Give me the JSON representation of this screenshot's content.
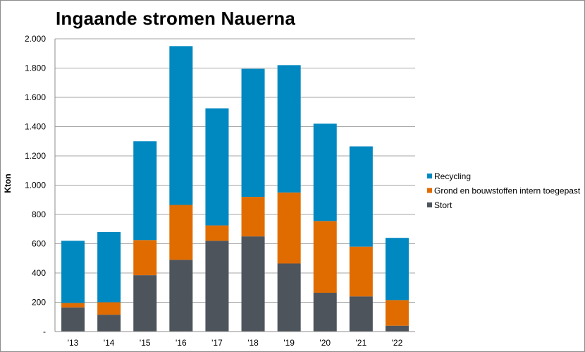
{
  "chart_data": {
    "type": "bar",
    "stacked": true,
    "title": "Ingaande stromen Nauerna",
    "xlabel": "",
    "ylabel": "Kton",
    "ylim": [
      0,
      2000
    ],
    "yticks": [
      0,
      200,
      400,
      600,
      800,
      1000,
      1200,
      1400,
      1600,
      1800,
      2000
    ],
    "ytick_labels": [
      "-",
      "200",
      "400",
      "600",
      "800",
      "1.000",
      "1.200",
      "1.400",
      "1.600",
      "1.800",
      "2.000"
    ],
    "categories": [
      "'13",
      "'14",
      "'15",
      "'16",
      "'17",
      "'18",
      "'19",
      "'20",
      "'21",
      "'22"
    ],
    "grid": "horizontal",
    "legend_position": "right",
    "series": [
      {
        "name": "Stort",
        "color": "#4d545c",
        "values": [
          165,
          115,
          385,
          490,
          620,
          650,
          465,
          265,
          240,
          40
        ]
      },
      {
        "name": "Grond en bouwstoffen intern toegepast",
        "color": "#e06c00",
        "values": [
          30,
          85,
          240,
          375,
          105,
          270,
          485,
          490,
          340,
          175
        ]
      },
      {
        "name": "Recycling",
        "color": "#0088c1",
        "values": [
          425,
          480,
          675,
          1085,
          800,
          875,
          870,
          665,
          685,
          425
        ]
      }
    ],
    "legend_order": [
      "Recycling",
      "Grond en bouwstoffen intern toegepast",
      "Stort"
    ]
  }
}
